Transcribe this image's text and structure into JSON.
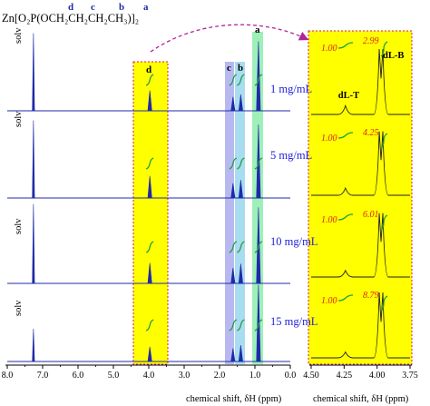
{
  "formula": {
    "text": "Zn[O₂P(OCH₂CH₂CH₂CH₃)]₂",
    "letters": [
      "d",
      "c",
      "b",
      "a"
    ]
  },
  "arrow_color": "#b0259c",
  "colors": {
    "spectrum": "#1f2aa8",
    "zoom_trace": "#222222",
    "integral": "#20a040",
    "red_text": "#e0201e",
    "yellow_band": "#ffff00",
    "band_c": "#b8b8f0",
    "band_b": "#a8dcf0",
    "band_a": "#9ef0b8",
    "dashed_border": "#d4166a"
  },
  "chart_data": [
    {
      "type": "line",
      "xlabel": "chemical shift, δH (ppm)",
      "xlim": [
        8.0,
        0.0
      ],
      "x_ticks": [
        "8.0",
        "7.0",
        "6.0",
        "5.0",
        "4.0",
        "3.0",
        "2.0",
        "1.0",
        "0.0"
      ],
      "peaks_ppm": {
        "solv": 7.26,
        "d": 3.97,
        "c": 1.62,
        "b": 1.4,
        "a": 0.9
      },
      "band_labels": {
        "d": "d",
        "c": "c",
        "b": "b",
        "a": "a"
      },
      "solvent_label": "solv",
      "series": [
        {
          "name": "1 mg/mL",
          "peak_heights": {
            "solv": 0.95,
            "d": 0.25,
            "c": 0.17,
            "b": 0.2,
            "a": 0.85
          }
        },
        {
          "name": "5 mg/mL",
          "peak_heights": {
            "solv": 0.95,
            "d": 0.27,
            "c": 0.18,
            "b": 0.22,
            "a": 0.9
          }
        },
        {
          "name": "10 mg/mL",
          "peak_heights": {
            "solv": 0.97,
            "d": 0.25,
            "c": 0.19,
            "b": 0.24,
            "a": 0.93
          }
        },
        {
          "name": "15 mg/mL",
          "peak_heights": {
            "solv": 0.4,
            "d": 0.18,
            "c": 0.16,
            "b": 0.2,
            "a": 0.94
          }
        }
      ]
    },
    {
      "type": "line",
      "xlabel": "chemical shift, δH (ppm)",
      "xlim": [
        4.5,
        3.75
      ],
      "x_ticks": [
        "4.50",
        "4.25",
        "4.00",
        "3.75"
      ],
      "peak_labels": {
        "dLT": "dL-T",
        "dLB": "dL-B"
      },
      "dLT_ppm": 4.24,
      "dLB_ppm": 3.97,
      "series": [
        {
          "name": "1 mg/mL",
          "integral_dLT": "1.00",
          "integral_dLB": "2.99",
          "height_dLT": 0.12,
          "height_dLB": 0.9
        },
        {
          "name": "5 mg/mL",
          "integral_dLT": "1.00",
          "integral_dLB": "4.25",
          "height_dLT": 0.1,
          "height_dLB": 0.88
        },
        {
          "name": "10 mg/mL",
          "integral_dLT": "1.00",
          "integral_dLB": "6.01",
          "height_dLT": 0.09,
          "height_dLB": 0.88
        },
        {
          "name": "15 mg/mL",
          "integral_dLT": "1.00",
          "integral_dLB": "8.79",
          "height_dLT": 0.08,
          "height_dLB": 0.9
        }
      ]
    }
  ]
}
